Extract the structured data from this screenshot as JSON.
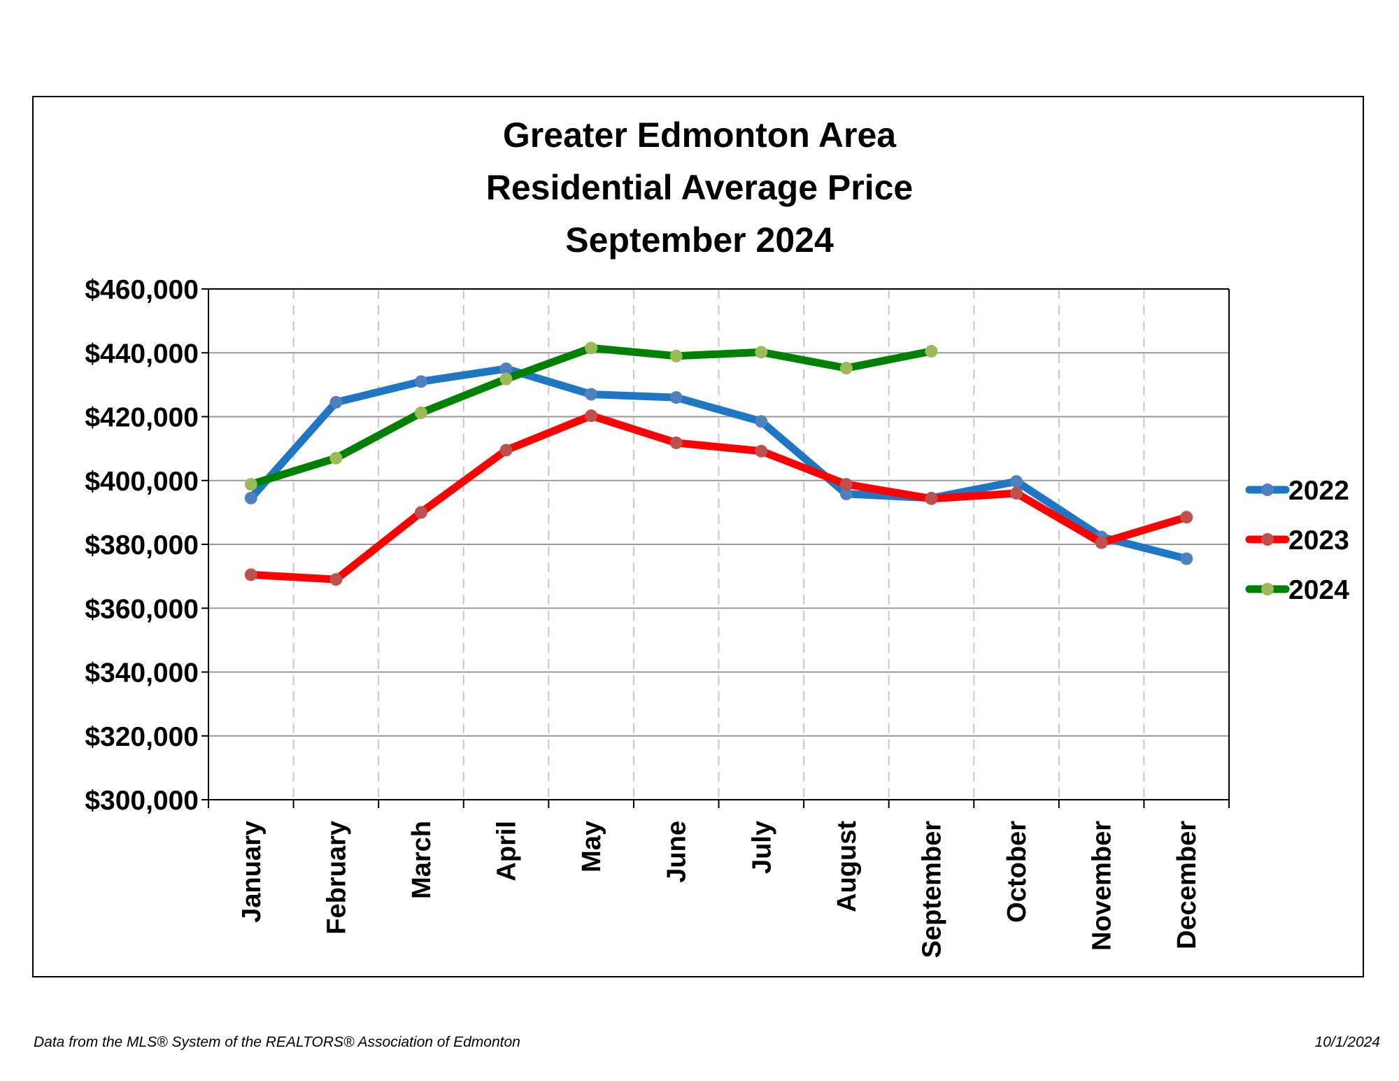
{
  "title_lines": [
    "Greater Edmonton Area",
    "Residential Average Price",
    "September 2024"
  ],
  "footer": {
    "source": "Data from the MLS® System of the REALTORS® Association of Edmonton",
    "date": "10/1/2024"
  },
  "chart_data": {
    "type": "line",
    "title": "Greater Edmonton Area Residential Average Price September 2024",
    "categories": [
      "January",
      "February",
      "March",
      "April",
      "May",
      "June",
      "July",
      "August",
      "September",
      "October",
      "November",
      "December"
    ],
    "y_ticks": [
      "$300,000",
      "$320,000",
      "$340,000",
      "$360,000",
      "$380,000",
      "$400,000",
      "$420,000",
      "$440,000",
      "$460,000"
    ],
    "ylim": [
      300000,
      460000
    ],
    "grid": {
      "horizontal": true,
      "vertical": "dashed"
    },
    "legend_position": "right",
    "series": [
      {
        "name": "2022",
        "color": "#1f77c4",
        "marker_color": "#4f81bd",
        "values": [
          394500,
          424500,
          431000,
          435000,
          427000,
          426000,
          418500,
          395800,
          394500,
          399700,
          382300,
          375500
        ]
      },
      {
        "name": "2023",
        "color": "#ff0000",
        "marker_color": "#c0504d",
        "values": [
          370500,
          369000,
          390000,
          409500,
          420300,
          411800,
          409200,
          398800,
          394300,
          396000,
          380500,
          388500
        ]
      },
      {
        "name": "2024",
        "color": "#008000",
        "marker_color": "#9bbb59",
        "values": [
          398800,
          407000,
          421200,
          431800,
          441500,
          439000,
          440200,
          435200,
          440500,
          null,
          null,
          null
        ]
      }
    ]
  }
}
